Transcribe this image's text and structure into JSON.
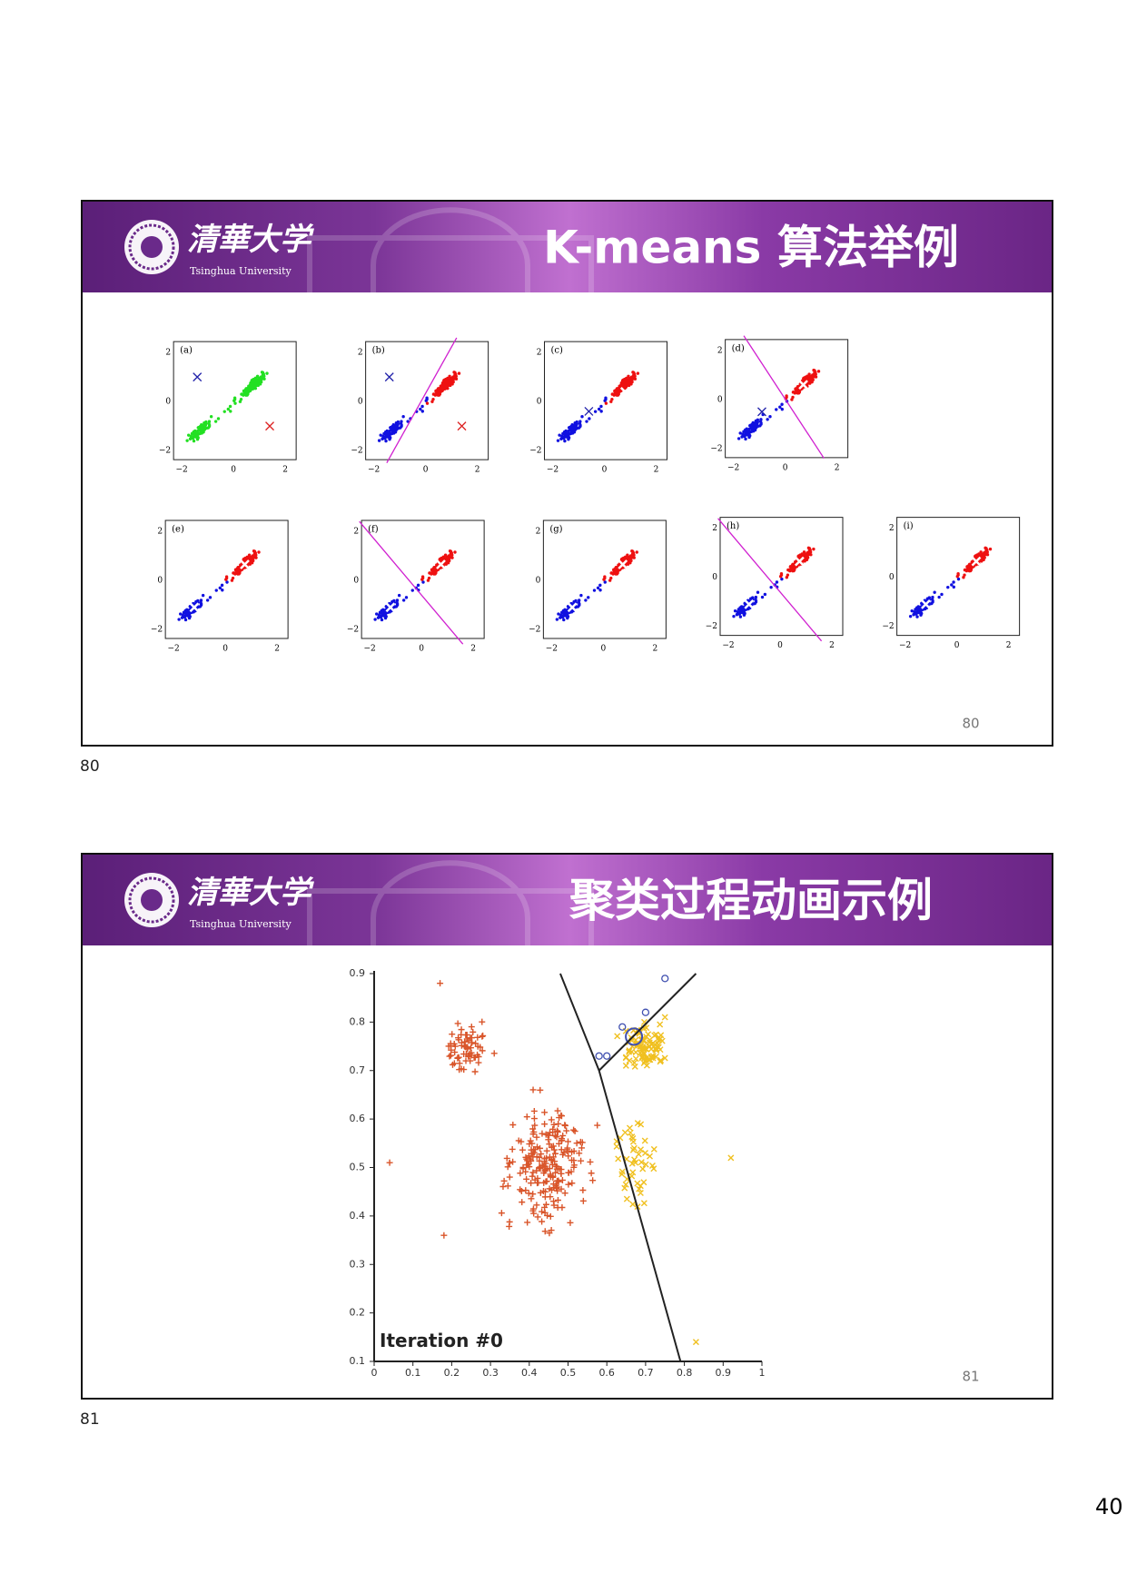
{
  "slides": [
    {
      "logo": {
        "name": "清華大学",
        "subtitle": "Tsinghua University"
      },
      "title": "K-means 算法举例",
      "panels": [
        "(a)",
        "(b)",
        "(c)",
        "(d)",
        "(e)",
        "(f)",
        "(g)",
        "(h)",
        "(i)"
      ],
      "axis_ticks": [
        "−2",
        "0",
        "2"
      ],
      "slide_number": "80"
    },
    {
      "logo": {
        "name": "清華大学",
        "subtitle": "Tsinghua University"
      },
      "title": "聚类过程动画示例",
      "plot": {
        "xticks": [
          "0",
          "0.1",
          "0.2",
          "0.3",
          "0.4",
          "0.5",
          "0.6",
          "0.7",
          "0.8",
          "0.9",
          "1"
        ],
        "yticks": [
          "0.1",
          "0.2",
          "0.3",
          "0.4",
          "0.5",
          "0.6",
          "0.7",
          "0.8",
          "0.9"
        ],
        "annotation": "Iteration #0"
      },
      "slide_number": "81"
    }
  ],
  "page_labels": [
    "80",
    "81"
  ],
  "page_number": "40"
}
